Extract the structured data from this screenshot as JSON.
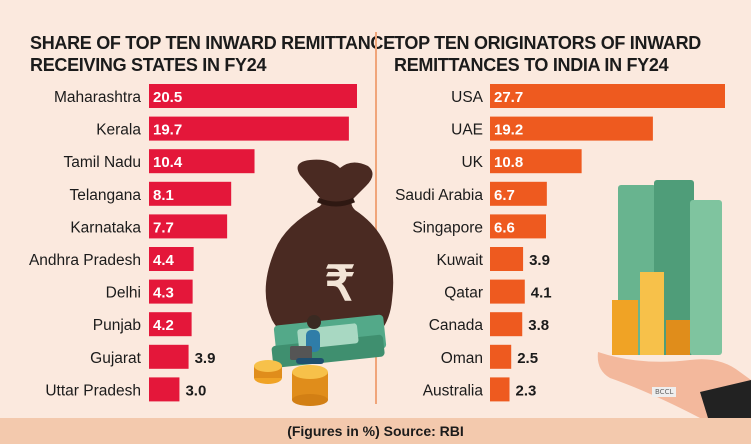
{
  "footer": "(Figures in %) Source: RBI",
  "badge": "BCCL",
  "colors": {
    "left_bar": "#e4173a",
    "right_bar": "#ee5a1f",
    "background": "#fbe9de"
  },
  "chart_data": [
    {
      "type": "bar",
      "title_lines": [
        "SHARE OF TOP TEN INWARD REMITTANCE",
        "RECEIVING STATES IN FY24"
      ],
      "categories": [
        "Maharashtra",
        "Kerala",
        "Tamil Nadu",
        "Telangana",
        "Karnataka",
        "Andhra Pradesh",
        "Delhi",
        "Punjab",
        "Gujarat",
        "Uttar Pradesh"
      ],
      "values": [
        20.5,
        19.7,
        10.4,
        8.1,
        7.7,
        4.4,
        4.3,
        4.2,
        3.9,
        3.0
      ],
      "labels": [
        "20.5",
        "19.7",
        "10.4",
        "8.1",
        "7.7",
        "4.4",
        "4.3",
        "4.2",
        "3.9",
        "3.0"
      ],
      "orientation": "horizontal",
      "color": "#e4173a"
    },
    {
      "type": "bar",
      "title_lines": [
        "TOP TEN ORIGINATORS OF INWARD",
        "REMITTANCES TO INDIA IN FY24"
      ],
      "categories": [
        "USA",
        "UAE",
        "UK",
        "Saudi Arabia",
        "Singapore",
        "Kuwait",
        "Qatar",
        "Canada",
        "Oman",
        "Australia"
      ],
      "values": [
        27.7,
        19.2,
        10.8,
        6.7,
        6.6,
        3.9,
        4.1,
        3.8,
        2.5,
        2.3
      ],
      "labels": [
        "27.7",
        "19.2",
        "10.8",
        "6.7",
        "6.6",
        "3.9",
        "4.1",
        "3.8",
        "2.5",
        "2.3"
      ],
      "orientation": "horizontal",
      "color": "#ee5a1f"
    }
  ]
}
